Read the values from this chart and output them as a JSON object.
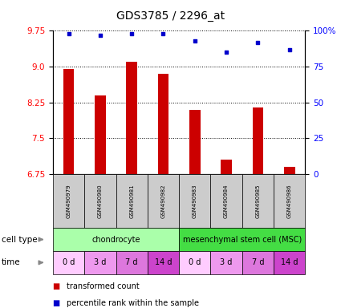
{
  "title": "GDS3785 / 2296_at",
  "samples": [
    "GSM490979",
    "GSM490980",
    "GSM490981",
    "GSM490982",
    "GSM490983",
    "GSM490984",
    "GSM490985",
    "GSM490986"
  ],
  "bar_values": [
    8.95,
    8.4,
    9.1,
    8.85,
    8.1,
    7.05,
    8.15,
    6.9
  ],
  "scatter_values": [
    98,
    97,
    98,
    98,
    93,
    85,
    92,
    87
  ],
  "ylim_left": [
    6.75,
    9.75
  ],
  "ylim_right": [
    0,
    100
  ],
  "yticks_left": [
    6.75,
    7.5,
    8.25,
    9.0,
    9.75
  ],
  "yticks_right": [
    0,
    25,
    50,
    75,
    100
  ],
  "bar_color": "#cc0000",
  "scatter_color": "#0000cc",
  "cell_types": [
    {
      "label": "chondrocyte",
      "start": 0,
      "end": 4,
      "color": "#aaffaa"
    },
    {
      "label": "mesenchymal stem cell (MSC)",
      "start": 4,
      "end": 8,
      "color": "#44dd44"
    }
  ],
  "time_labels": [
    "0 d",
    "3 d",
    "7 d",
    "14 d",
    "0 d",
    "3 d",
    "7 d",
    "14 d"
  ],
  "time_colors": [
    "#ffccff",
    "#ee99ee",
    "#dd77dd",
    "#cc44cc",
    "#ffccff",
    "#ee99ee",
    "#dd77dd",
    "#cc44cc"
  ],
  "tick_label_bg": "#cccccc",
  "legend_items": [
    {
      "label": "transformed count",
      "color": "#cc0000"
    },
    {
      "label": "percentile rank within the sample",
      "color": "#0000cc"
    }
  ],
  "cell_type_label": "cell type",
  "time_label": "time",
  "fig_width": 4.25,
  "fig_height": 3.84,
  "dpi": 100
}
